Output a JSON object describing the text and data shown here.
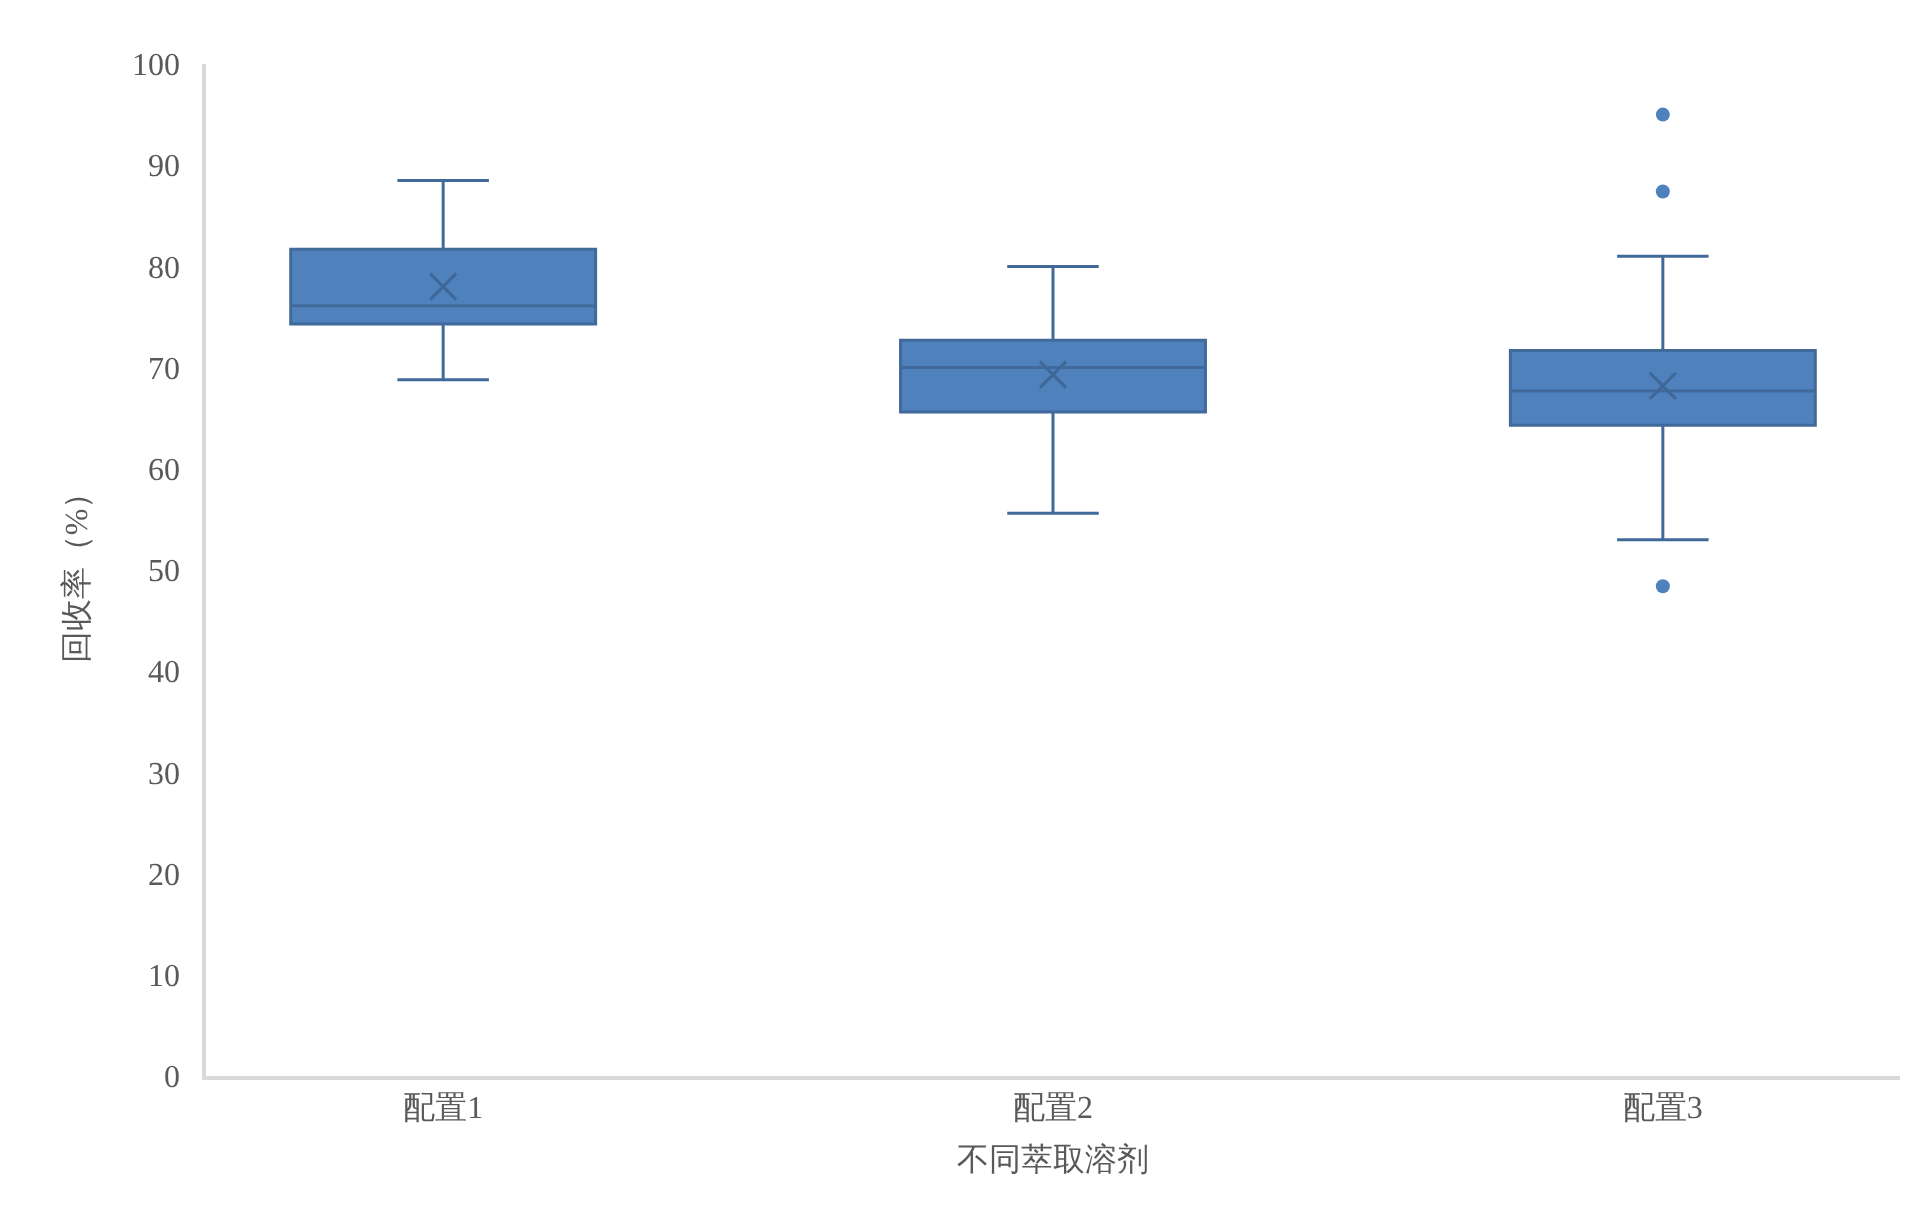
{
  "chart_data": {
    "type": "box",
    "xlabel": "不同萃取溶剂",
    "ylabel": "回收率（%）",
    "categories": [
      "配置1",
      "配置2",
      "配置3"
    ],
    "boxes": [
      {
        "low": 68.8,
        "q1": 74.3,
        "median": 76.1,
        "q3": 81.7,
        "high": 88.5,
        "mean": 78.0
      },
      {
        "low": 55.6,
        "q1": 65.6,
        "median": 70.0,
        "q3": 72.7,
        "high": 80.0,
        "mean": 69.3
      },
      {
        "low": 53.0,
        "q1": 64.3,
        "median": 67.7,
        "q3": 71.7,
        "high": 81.0,
        "mean": 68.2,
        "outliers": [
          95.0,
          87.4,
          48.4
        ]
      }
    ],
    "color": "#4f81bd",
    "ylim": [
      0,
      100
    ],
    "yticks": [
      0,
      10,
      20,
      30,
      40,
      50,
      60,
      70,
      80,
      90,
      100
    ],
    "grid": false
  }
}
